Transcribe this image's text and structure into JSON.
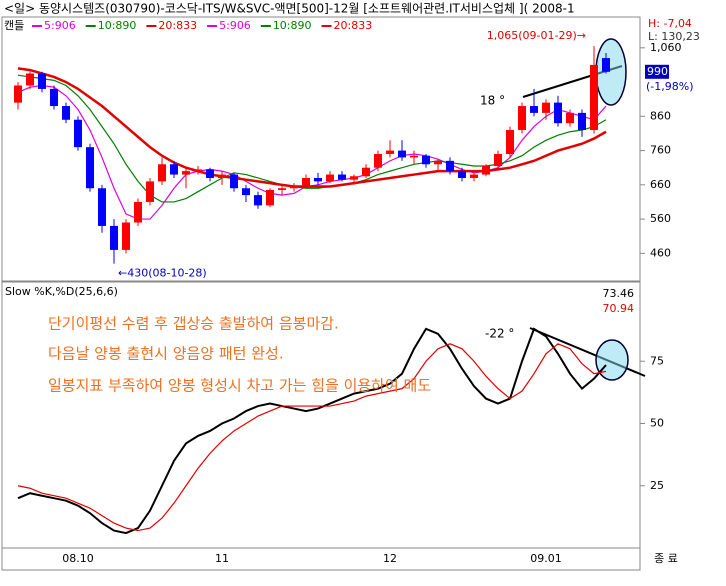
{
  "header": {
    "title": "<일> 동양시스템즈(030790)-코스닥-ITS/W&SVC-액면[500]-12월 [소프트웨어관련.IT서비스업체 ]( 2008-1",
    "legend_label": "캔들",
    "legend_repeat": [
      "5:906",
      "10:890",
      "20:833"
    ],
    "high_info": "H: -7,04",
    "low_info": "L: 130,23",
    "end_label": "종 료"
  },
  "chart_data": [
    {
      "type": "candlestick",
      "categories": [
        null,
        null,
        null,
        null,
        null,
        null,
        null,
        null,
        null,
        null,
        null,
        null,
        null,
        null,
        null,
        null,
        null,
        null,
        null,
        null,
        null,
        null,
        null,
        null,
        null,
        null,
        null,
        null,
        null,
        null,
        null,
        null,
        null,
        null,
        null,
        null,
        null,
        null,
        null,
        null,
        null,
        null,
        null,
        null,
        null,
        null,
        null,
        null,
        null,
        null
      ],
      "open": [
        900,
        950,
        985,
        940,
        890,
        850,
        770,
        650,
        540,
        470,
        550,
        610,
        670,
        720,
        690,
        700,
        705,
        680,
        690,
        650,
        630,
        600,
        645,
        650,
        655,
        680,
        670,
        690,
        675,
        685,
        710,
        750,
        760,
        740,
        745,
        720,
        730,
        700,
        680,
        690,
        715,
        750,
        820,
        890,
        870,
        900,
        840,
        870,
        820,
        1030
      ],
      "high": [
        960,
        990,
        990,
        950,
        900,
        860,
        780,
        660,
        560,
        560,
        620,
        680,
        740,
        730,
        710,
        715,
        710,
        700,
        695,
        660,
        640,
        650,
        660,
        665,
        690,
        695,
        700,
        700,
        690,
        720,
        760,
        790,
        790,
        760,
        750,
        735,
        740,
        710,
        700,
        720,
        760,
        830,
        900,
        940,
        910,
        920,
        880,
        880,
        1065,
        1045
      ],
      "low": [
        880,
        940,
        930,
        880,
        840,
        760,
        640,
        520,
        430,
        460,
        540,
        600,
        660,
        680,
        650,
        690,
        670,
        660,
        640,
        610,
        590,
        595,
        630,
        640,
        650,
        660,
        665,
        670,
        660,
        680,
        700,
        740,
        730,
        720,
        710,
        700,
        690,
        670,
        670,
        685,
        710,
        740,
        810,
        860,
        850,
        830,
        830,
        800,
        810,
        985
      ],
      "close": [
        950,
        985,
        940,
        890,
        850,
        770,
        650,
        540,
        470,
        550,
        610,
        670,
        720,
        690,
        700,
        705,
        680,
        690,
        650,
        630,
        600,
        645,
        650,
        655,
        680,
        670,
        690,
        675,
        685,
        710,
        750,
        760,
        740,
        745,
        720,
        730,
        700,
        680,
        690,
        715,
        750,
        820,
        890,
        870,
        900,
        840,
        870,
        820,
        1010,
        990
      ],
      "up_color": "#ff0000",
      "down_color": "#0000ff",
      "series": [
        {
          "name": "5:906",
          "color": "#e000e0",
          "values": [
            930,
            945,
            950,
            945,
            920,
            880,
            820,
            740,
            650,
            575,
            560,
            560,
            600,
            650,
            690,
            700,
            705,
            700,
            690,
            670,
            650,
            635,
            630,
            635,
            655,
            660,
            670,
            675,
            680,
            690,
            710,
            730,
            745,
            750,
            745,
            735,
            720,
            705,
            695,
            700,
            710,
            740,
            790,
            830,
            860,
            880,
            870,
            860,
            850,
            890
          ]
        },
        {
          "name": "10:890",
          "color": "#008000",
          "values": [
            980,
            975,
            970,
            965,
            950,
            920,
            880,
            830,
            780,
            720,
            670,
            630,
            610,
            610,
            620,
            640,
            660,
            680,
            695,
            690,
            680,
            670,
            660,
            655,
            650,
            650,
            655,
            660,
            665,
            675,
            690,
            700,
            710,
            720,
            725,
            730,
            725,
            720,
            715,
            715,
            720,
            730,
            745,
            770,
            790,
            805,
            815,
            820,
            830,
            850
          ]
        },
        {
          "name": "20:833",
          "color": "#e00000",
          "values": [
            1000,
            995,
            985,
            975,
            960,
            940,
            915,
            890,
            860,
            830,
            800,
            770,
            745,
            725,
            710,
            700,
            690,
            685,
            680,
            675,
            670,
            665,
            660,
            655,
            655,
            655,
            655,
            660,
            665,
            670,
            675,
            680,
            685,
            690,
            695,
            700,
            700,
            700,
            700,
            700,
            705,
            710,
            720,
            730,
            745,
            760,
            770,
            780,
            795,
            815
          ]
        }
      ],
      "ylim": [
        388,
        1112
      ],
      "yticks": [
        460,
        560,
        660,
        760,
        860,
        {
          "value": 1060,
          "label": "1,060"
        }
      ],
      "change_label": "(-1,98%)",
      "annotations": [
        "1,065(09-01-29)→",
        "←430(08-10-28)",
        "18 °"
      ]
    },
    {
      "type": "line",
      "title": "Slow %K,%D(25,6,6)",
      "categories": [
        null,
        null,
        null,
        null,
        null,
        "08.10",
        null,
        null,
        null,
        null,
        null,
        null,
        null,
        null,
        null,
        null,
        null,
        "11",
        null,
        null,
        null,
        null,
        null,
        null,
        null,
        null,
        null,
        null,
        null,
        null,
        null,
        "12",
        null,
        null,
        null,
        null,
        null,
        null,
        null,
        null,
        null,
        null,
        null,
        null,
        "09.01",
        null,
        null,
        null,
        null,
        null
      ],
      "series": [
        {
          "name": "%K",
          "color": "#000000",
          "values": [
            20,
            22,
            21,
            20,
            19,
            17,
            14,
            10,
            7,
            6,
            8,
            15,
            25,
            35,
            42,
            45,
            47,
            50,
            52,
            55,
            57,
            58,
            57,
            56,
            55,
            56,
            58,
            60,
            62,
            63,
            64,
            66,
            70,
            80,
            88,
            86,
            80,
            72,
            65,
            60,
            58,
            60,
            75,
            88,
            85,
            78,
            70,
            64,
            68,
            73.46
          ]
        },
        {
          "name": "%D",
          "color": "#e00000",
          "values": [
            25,
            24,
            22,
            21,
            20,
            18,
            16,
            13,
            10,
            8,
            7,
            8,
            12,
            18,
            25,
            32,
            38,
            43,
            47,
            50,
            53,
            55,
            57,
            57,
            57,
            57,
            57,
            58,
            59,
            61,
            62,
            63,
            64,
            68,
            75,
            80,
            82,
            80,
            75,
            69,
            64,
            60,
            63,
            70,
            78,
            82,
            80,
            74,
            70,
            70.94
          ]
        }
      ],
      "ylim": [
        0,
        100
      ],
      "yticks": [
        25,
        50,
        75
      ],
      "annotations": [
        "단기이평선 수렴 후 갭상승 출발하여 음봉마감.",
        "다음날 양봉 출현시 양음양 패턴 완성.",
        "일봉지표 부족하여 양봉 형성시 차고 가는 힘을 이용하여 매도",
        "-22 °"
      ]
    }
  ]
}
